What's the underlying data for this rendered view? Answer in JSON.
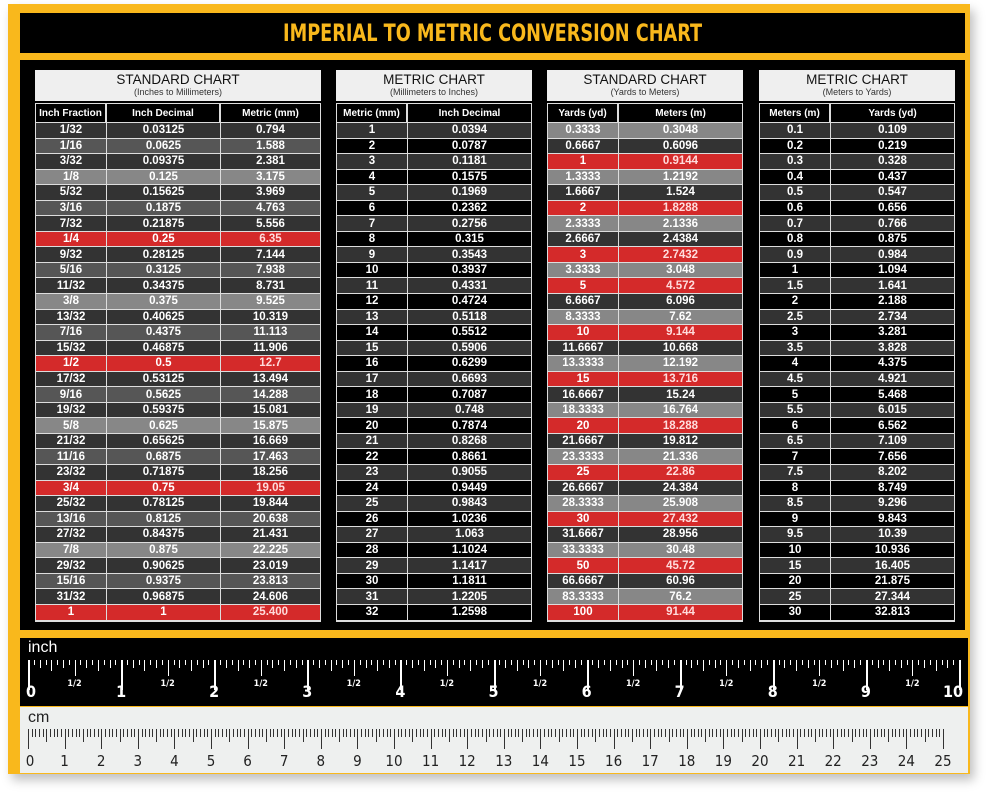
{
  "title": "IMPERIAL TO METRIC CONVERSION CHART",
  "colors": {
    "board_yellow": "#f9b81c",
    "black": "#000000",
    "dark_row": "#333333",
    "mid_row": "#565656",
    "light_row": "#878787",
    "red_row": "#d42a2a",
    "header_bg": "#efefef"
  },
  "tables": [
    {
      "title": "STANDARD CHART",
      "subtitle": "(Inches to Millimeters)",
      "columns": [
        "Inch Fraction",
        "Inch Decimal",
        "Metric (mm)"
      ],
      "rows": [
        {
          "v": [
            "1/32",
            "0.03125",
            "0.794"
          ],
          "style": "dark"
        },
        {
          "v": [
            "1/16",
            "0.0625",
            "1.588"
          ],
          "style": "mid"
        },
        {
          "v": [
            "3/32",
            "0.09375",
            "2.381"
          ],
          "style": "dark"
        },
        {
          "v": [
            "1/8",
            "0.125",
            "3.175"
          ],
          "style": "light"
        },
        {
          "v": [
            "5/32",
            "0.15625",
            "3.969"
          ],
          "style": "dark"
        },
        {
          "v": [
            "3/16",
            "0.1875",
            "4.763"
          ],
          "style": "mid"
        },
        {
          "v": [
            "7/32",
            "0.21875",
            "5.556"
          ],
          "style": "dark"
        },
        {
          "v": [
            "1/4",
            "0.25",
            "6.35"
          ],
          "style": "red"
        },
        {
          "v": [
            "9/32",
            "0.28125",
            "7.144"
          ],
          "style": "dark"
        },
        {
          "v": [
            "5/16",
            "0.3125",
            "7.938"
          ],
          "style": "mid"
        },
        {
          "v": [
            "11/32",
            "0.34375",
            "8.731"
          ],
          "style": "dark"
        },
        {
          "v": [
            "3/8",
            "0.375",
            "9.525"
          ],
          "style": "light"
        },
        {
          "v": [
            "13/32",
            "0.40625",
            "10.319"
          ],
          "style": "dark"
        },
        {
          "v": [
            "7/16",
            "0.4375",
            "11.113"
          ],
          "style": "mid"
        },
        {
          "v": [
            "15/32",
            "0.46875",
            "11.906"
          ],
          "style": "dark"
        },
        {
          "v": [
            "1/2",
            "0.5",
            "12.7"
          ],
          "style": "red"
        },
        {
          "v": [
            "17/32",
            "0.53125",
            "13.494"
          ],
          "style": "dark"
        },
        {
          "v": [
            "9/16",
            "0.5625",
            "14.288"
          ],
          "style": "mid"
        },
        {
          "v": [
            "19/32",
            "0.59375",
            "15.081"
          ],
          "style": "dark"
        },
        {
          "v": [
            "5/8",
            "0.625",
            "15.875"
          ],
          "style": "light"
        },
        {
          "v": [
            "21/32",
            "0.65625",
            "16.669"
          ],
          "style": "dark"
        },
        {
          "v": [
            "11/16",
            "0.6875",
            "17.463"
          ],
          "style": "mid"
        },
        {
          "v": [
            "23/32",
            "0.71875",
            "18.256"
          ],
          "style": "dark"
        },
        {
          "v": [
            "3/4",
            "0.75",
            "19.05"
          ],
          "style": "red"
        },
        {
          "v": [
            "25/32",
            "0.78125",
            "19.844"
          ],
          "style": "dark"
        },
        {
          "v": [
            "13/16",
            "0.8125",
            "20.638"
          ],
          "style": "mid"
        },
        {
          "v": [
            "27/32",
            "0.84375",
            "21.431"
          ],
          "style": "dark"
        },
        {
          "v": [
            "7/8",
            "0.875",
            "22.225"
          ],
          "style": "light"
        },
        {
          "v": [
            "29/32",
            "0.90625",
            "23.019"
          ],
          "style": "dark"
        },
        {
          "v": [
            "15/16",
            "0.9375",
            "23.813"
          ],
          "style": "mid"
        },
        {
          "v": [
            "31/32",
            "0.96875",
            "24.606"
          ],
          "style": "dark"
        },
        {
          "v": [
            "1",
            "1",
            "25.400"
          ],
          "style": "red"
        }
      ]
    },
    {
      "title": "METRIC CHART",
      "subtitle": "(Millimeters to Inches)",
      "columns": [
        "Metric (mm)",
        "Inch Decimal"
      ],
      "rows": [
        {
          "v": [
            "1",
            "0.0394"
          ],
          "style": "dark"
        },
        {
          "v": [
            "2",
            "0.0787"
          ],
          "style": "black"
        },
        {
          "v": [
            "3",
            "0.1181"
          ],
          "style": "dark"
        },
        {
          "v": [
            "4",
            "0.1575"
          ],
          "style": "black"
        },
        {
          "v": [
            "5",
            "0.1969"
          ],
          "style": "dark"
        },
        {
          "v": [
            "6",
            "0.2362"
          ],
          "style": "black"
        },
        {
          "v": [
            "7",
            "0.2756"
          ],
          "style": "dark"
        },
        {
          "v": [
            "8",
            "0.315"
          ],
          "style": "black"
        },
        {
          "v": [
            "9",
            "0.3543"
          ],
          "style": "dark"
        },
        {
          "v": [
            "10",
            "0.3937"
          ],
          "style": "black"
        },
        {
          "v": [
            "11",
            "0.4331"
          ],
          "style": "dark"
        },
        {
          "v": [
            "12",
            "0.4724"
          ],
          "style": "black"
        },
        {
          "v": [
            "13",
            "0.5118"
          ],
          "style": "dark"
        },
        {
          "v": [
            "14",
            "0.5512"
          ],
          "style": "black"
        },
        {
          "v": [
            "15",
            "0.5906"
          ],
          "style": "dark"
        },
        {
          "v": [
            "16",
            "0.6299"
          ],
          "style": "black"
        },
        {
          "v": [
            "17",
            "0.6693"
          ],
          "style": "dark"
        },
        {
          "v": [
            "18",
            "0.7087"
          ],
          "style": "black"
        },
        {
          "v": [
            "19",
            "0.748"
          ],
          "style": "dark"
        },
        {
          "v": [
            "20",
            "0.7874"
          ],
          "style": "black"
        },
        {
          "v": [
            "21",
            "0.8268"
          ],
          "style": "dark"
        },
        {
          "v": [
            "22",
            "0.8661"
          ],
          "style": "black"
        },
        {
          "v": [
            "23",
            "0.9055"
          ],
          "style": "dark"
        },
        {
          "v": [
            "24",
            "0.9449"
          ],
          "style": "black"
        },
        {
          "v": [
            "25",
            "0.9843"
          ],
          "style": "dark"
        },
        {
          "v": [
            "26",
            "1.0236"
          ],
          "style": "black"
        },
        {
          "v": [
            "27",
            "1.063"
          ],
          "style": "dark"
        },
        {
          "v": [
            "28",
            "1.1024"
          ],
          "style": "black"
        },
        {
          "v": [
            "29",
            "1.1417"
          ],
          "style": "dark"
        },
        {
          "v": [
            "30",
            "1.1811"
          ],
          "style": "black"
        },
        {
          "v": [
            "31",
            "1.2205"
          ],
          "style": "dark"
        },
        {
          "v": [
            "32",
            "1.2598"
          ],
          "style": "black"
        }
      ]
    },
    {
      "title": "STANDARD CHART",
      "subtitle": "(Yards to Meters)",
      "columns": [
        "Yards (yd)",
        "Meters (m)"
      ],
      "rows": [
        {
          "v": [
            "0.3333",
            "0.3048"
          ],
          "style": "light"
        },
        {
          "v": [
            "0.6667",
            "0.6096"
          ],
          "style": "dark"
        },
        {
          "v": [
            "1",
            "0.9144"
          ],
          "style": "red"
        },
        {
          "v": [
            "1.3333",
            "1.2192"
          ],
          "style": "light"
        },
        {
          "v": [
            "1.6667",
            "1.524"
          ],
          "style": "dark"
        },
        {
          "v": [
            "2",
            "1.8288"
          ],
          "style": "red"
        },
        {
          "v": [
            "2.3333",
            "2.1336"
          ],
          "style": "light"
        },
        {
          "v": [
            "2.6667",
            "2.4384"
          ],
          "style": "dark"
        },
        {
          "v": [
            "3",
            "2.7432"
          ],
          "style": "red"
        },
        {
          "v": [
            "3.3333",
            "3.048"
          ],
          "style": "light"
        },
        {
          "v": [
            "5",
            "4.572"
          ],
          "style": "red"
        },
        {
          "v": [
            "6.6667",
            "6.096"
          ],
          "style": "dark"
        },
        {
          "v": [
            "8.3333",
            "7.62"
          ],
          "style": "light"
        },
        {
          "v": [
            "10",
            "9.144"
          ],
          "style": "red"
        },
        {
          "v": [
            "11.6667",
            "10.668"
          ],
          "style": "dark"
        },
        {
          "v": [
            "13.3333",
            "12.192"
          ],
          "style": "light"
        },
        {
          "v": [
            "15",
            "13.716"
          ],
          "style": "red"
        },
        {
          "v": [
            "16.6667",
            "15.24"
          ],
          "style": "dark"
        },
        {
          "v": [
            "18.3333",
            "16.764"
          ],
          "style": "light"
        },
        {
          "v": [
            "20",
            "18.288"
          ],
          "style": "red"
        },
        {
          "v": [
            "21.6667",
            "19.812"
          ],
          "style": "dark"
        },
        {
          "v": [
            "23.3333",
            "21.336"
          ],
          "style": "light"
        },
        {
          "v": [
            "25",
            "22.86"
          ],
          "style": "red"
        },
        {
          "v": [
            "26.6667",
            "24.384"
          ],
          "style": "dark"
        },
        {
          "v": [
            "28.3333",
            "25.908"
          ],
          "style": "light"
        },
        {
          "v": [
            "30",
            "27.432"
          ],
          "style": "red"
        },
        {
          "v": [
            "31.6667",
            "28.956"
          ],
          "style": "dark"
        },
        {
          "v": [
            "33.3333",
            "30.48"
          ],
          "style": "light"
        },
        {
          "v": [
            "50",
            "45.72"
          ],
          "style": "red"
        },
        {
          "v": [
            "66.6667",
            "60.96"
          ],
          "style": "dark"
        },
        {
          "v": [
            "83.3333",
            "76.2"
          ],
          "style": "light"
        },
        {
          "v": [
            "100",
            "91.44"
          ],
          "style": "red"
        }
      ]
    },
    {
      "title": "METRIC CHART",
      "subtitle": "(Meters to Yards)",
      "columns": [
        "Meters (m)",
        "Yards (yd)"
      ],
      "rows": [
        {
          "v": [
            "0.1",
            "0.109"
          ],
          "style": "dark"
        },
        {
          "v": [
            "0.2",
            "0.219"
          ],
          "style": "black"
        },
        {
          "v": [
            "0.3",
            "0.328"
          ],
          "style": "dark"
        },
        {
          "v": [
            "0.4",
            "0.437"
          ],
          "style": "black"
        },
        {
          "v": [
            "0.5",
            "0.547"
          ],
          "style": "dark"
        },
        {
          "v": [
            "0.6",
            "0.656"
          ],
          "style": "black"
        },
        {
          "v": [
            "0.7",
            "0.766"
          ],
          "style": "dark"
        },
        {
          "v": [
            "0.8",
            "0.875"
          ],
          "style": "black"
        },
        {
          "v": [
            "0.9",
            "0.984"
          ],
          "style": "dark"
        },
        {
          "v": [
            "1",
            "1.094"
          ],
          "style": "black"
        },
        {
          "v": [
            "1.5",
            "1.641"
          ],
          "style": "dark"
        },
        {
          "v": [
            "2",
            "2.188"
          ],
          "style": "black"
        },
        {
          "v": [
            "2.5",
            "2.734"
          ],
          "style": "dark"
        },
        {
          "v": [
            "3",
            "3.281"
          ],
          "style": "black"
        },
        {
          "v": [
            "3.5",
            "3.828"
          ],
          "style": "dark"
        },
        {
          "v": [
            "4",
            "4.375"
          ],
          "style": "black"
        },
        {
          "v": [
            "4.5",
            "4.921"
          ],
          "style": "dark"
        },
        {
          "v": [
            "5",
            "5.468"
          ],
          "style": "black"
        },
        {
          "v": [
            "5.5",
            "6.015"
          ],
          "style": "dark"
        },
        {
          "v": [
            "6",
            "6.562"
          ],
          "style": "black"
        },
        {
          "v": [
            "6.5",
            "7.109"
          ],
          "style": "dark"
        },
        {
          "v": [
            "7",
            "7.656"
          ],
          "style": "black"
        },
        {
          "v": [
            "7.5",
            "8.202"
          ],
          "style": "dark"
        },
        {
          "v": [
            "8",
            "8.749"
          ],
          "style": "black"
        },
        {
          "v": [
            "8.5",
            "9.296"
          ],
          "style": "dark"
        },
        {
          "v": [
            "9",
            "9.843"
          ],
          "style": "black"
        },
        {
          "v": [
            "9.5",
            "10.39"
          ],
          "style": "dark"
        },
        {
          "v": [
            "10",
            "10.936"
          ],
          "style": "black"
        },
        {
          "v": [
            "15",
            "16.405"
          ],
          "style": "dark"
        },
        {
          "v": [
            "20",
            "21.875"
          ],
          "style": "black"
        },
        {
          "v": [
            "25",
            "27.344"
          ],
          "style": "dark"
        },
        {
          "v": [
            "30",
            "32.813"
          ],
          "style": "black"
        }
      ]
    }
  ],
  "rulers": {
    "inch": {
      "label": "inch",
      "numbers": [
        "0",
        "1",
        "2",
        "3",
        "4",
        "5",
        "6",
        "7",
        "8",
        "9",
        "10"
      ],
      "half_label": "1/2",
      "subdivisions_per_unit": 16
    },
    "cm": {
      "label": "cm",
      "numbers": [
        "0",
        "1",
        "2",
        "3",
        "4",
        "5",
        "6",
        "7",
        "8",
        "9",
        "10",
        "11",
        "12",
        "13",
        "14",
        "15",
        "16",
        "17",
        "18",
        "19",
        "20",
        "21",
        "22",
        "23",
        "24",
        "25"
      ],
      "subdivisions_per_unit": 10
    }
  }
}
